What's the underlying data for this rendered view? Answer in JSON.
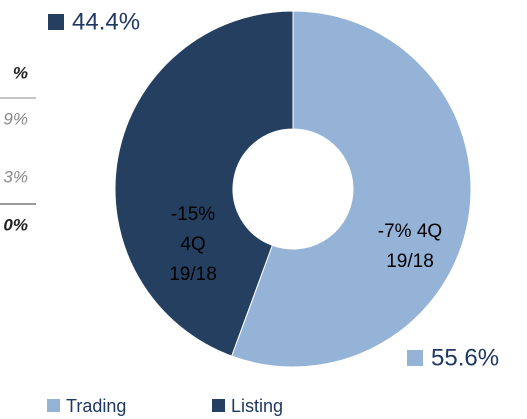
{
  "chart_data": {
    "type": "pie",
    "categories": [
      "Trading",
      "Listing"
    ],
    "values": [
      55.6,
      44.4
    ],
    "value_labels": [
      "55.6%",
      "44.4%"
    ],
    "colors": [
      "#95b3d7",
      "#243f60"
    ],
    "segment_notes": [
      [
        "-7% 4Q",
        "19/18"
      ],
      [
        "-15%",
        "4Q",
        "19/18"
      ]
    ],
    "legend": "bottom"
  },
  "side_table": {
    "cells": [
      "%",
      "9%",
      "3%",
      "0%"
    ]
  }
}
